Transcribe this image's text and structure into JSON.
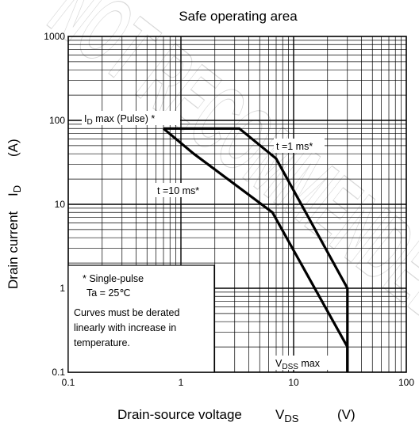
{
  "chart_data": {
    "type": "line",
    "title": "Safe operating area",
    "xlabel": {
      "main": "Drain-source voltage",
      "symbol": "V",
      "sub": "DS",
      "unit": "(V)"
    },
    "ylabel": {
      "main": "Drain current",
      "symbol": "I",
      "sub": "D",
      "unit": "(A)"
    },
    "xscale": "log",
    "yscale": "log",
    "xlim": [
      0.1,
      100
    ],
    "ylim": [
      0.1,
      1000
    ],
    "grid": true,
    "x_ticks": [
      {
        "value": 0.1,
        "label": "0.1"
      },
      {
        "value": 1,
        "label": "1"
      },
      {
        "value": 10,
        "label": "10"
      },
      {
        "value": 100,
        "label": "100"
      }
    ],
    "y_ticks": [
      {
        "value": 0.1,
        "label": "0.1"
      },
      {
        "value": 1,
        "label": "1"
      },
      {
        "value": 10,
        "label": "10"
      },
      {
        "value": 100,
        "label": "100"
      },
      {
        "value": 1000,
        "label": "1000"
      }
    ],
    "series": [
      {
        "name": "t =10 ms*",
        "points": [
          [
            0.7,
            80
          ],
          [
            1.3,
            40
          ],
          [
            6.5,
            8
          ],
          [
            30,
            0.2
          ],
          [
            30,
            0.1
          ]
        ]
      },
      {
        "name": "t =1 ms*",
        "points": [
          [
            0.7,
            80
          ],
          [
            3.3,
            80
          ],
          [
            7,
            35
          ],
          [
            30,
            1
          ],
          [
            30,
            0.1
          ]
        ]
      }
    ],
    "annotations": {
      "id_max": {
        "main": "I",
        "sub": "D",
        "rest": " max (Pulse) *"
      },
      "t1ms": "t =1 ms*",
      "t10ms": "t =10 ms*",
      "vdss": {
        "main": "V",
        "sub": "DSS",
        "rest": " max"
      },
      "note_lines": [
        "* Single-pulse",
        "Ta = 25℃",
        "Curves must be derated",
        "linearly with increase in",
        "temperature."
      ]
    }
  },
  "watermark": "NOT RECOMMENDED"
}
